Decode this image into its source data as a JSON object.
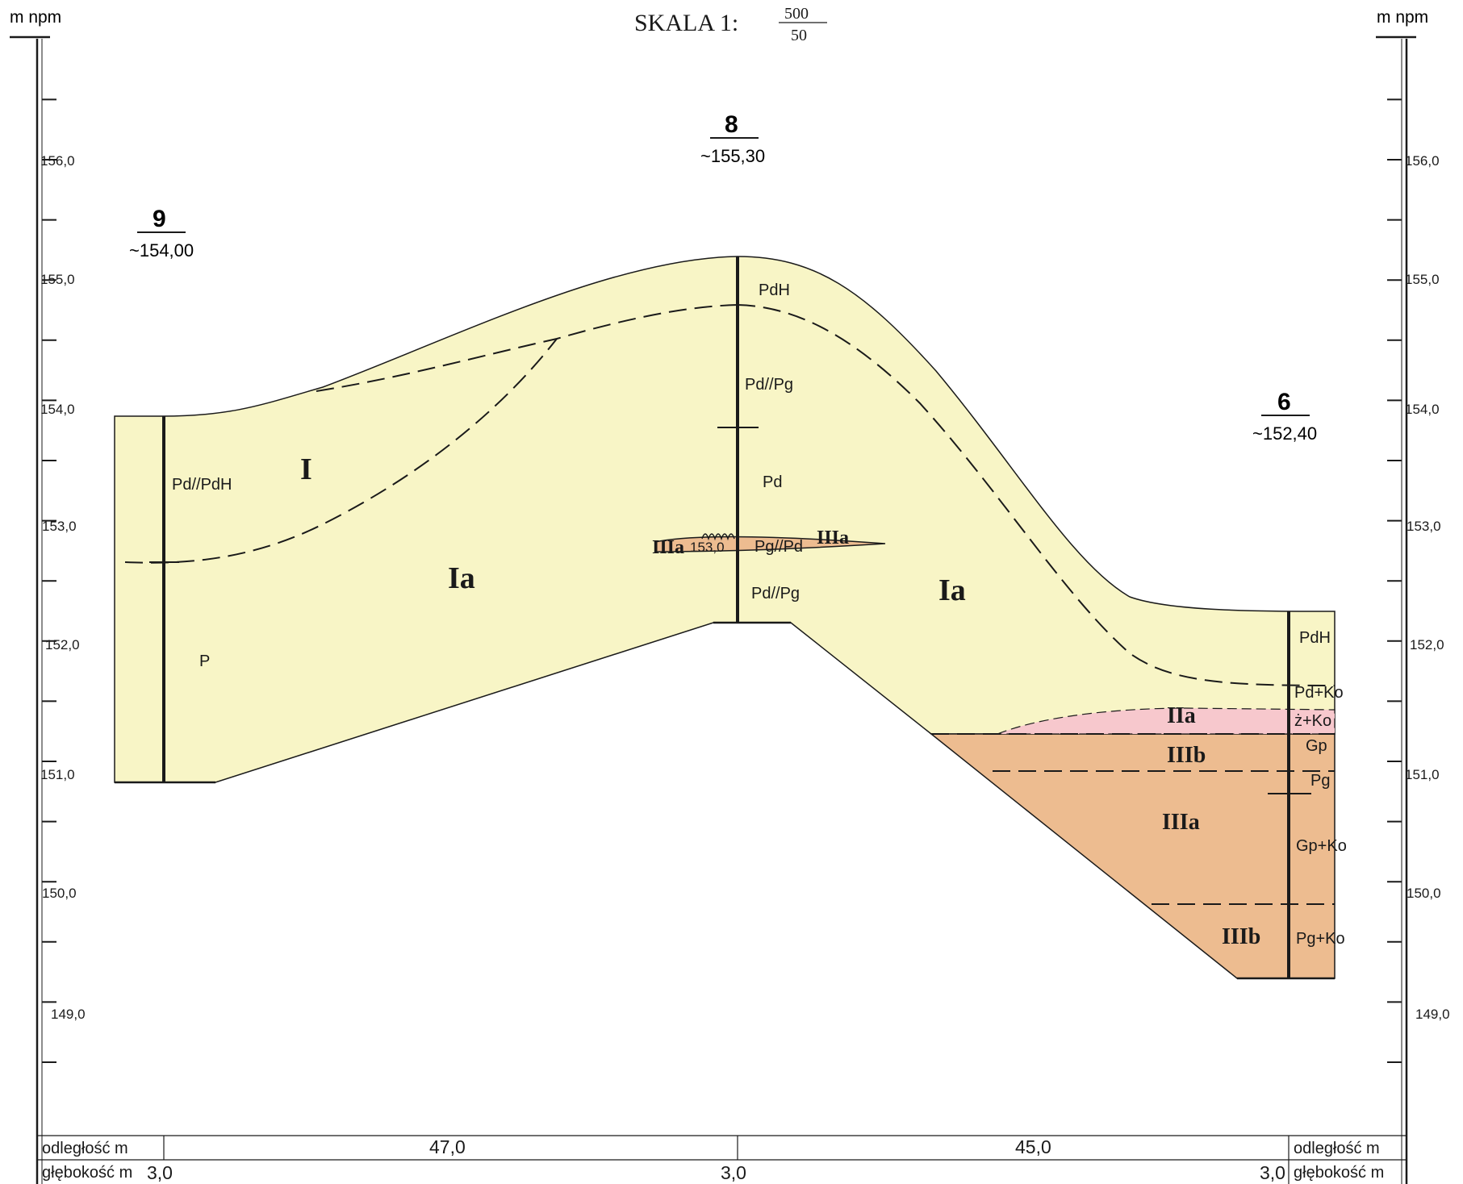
{
  "header": {
    "unit_left": "m npm",
    "unit_right": "m npm",
    "scale_label": "SKALA  1:",
    "scale_num": "500",
    "scale_den": "50"
  },
  "elevation_ticks": [
    "156,0",
    "155,0",
    "154,0",
    "153,0",
    "152,0",
    "151,0",
    "150,0",
    "149,0"
  ],
  "boreholes": [
    {
      "number": "9",
      "elevation": "~154,00"
    },
    {
      "number": "8",
      "elevation": "~155,30"
    },
    {
      "number": "6",
      "elevation": "~152,40"
    }
  ],
  "soil_labels": {
    "b9_top": "Pd//PdH",
    "b9_bottom": "P",
    "b8_1": "PdH",
    "b8_2": "Pd//Pg",
    "b8_3": "Pd",
    "b8_lens": "Pg//Pd",
    "b8_lens_depth": "153,0",
    "b8_4": "Pd//Pg",
    "b6_1": "PdH",
    "b6_2": "Pd+Ko",
    "b6_3": "ż+Ko",
    "b6_4": "Gp",
    "b6_5": "Pg",
    "b6_6": "Gp+Ko",
    "b6_7": "Pg+Ko"
  },
  "layer_labels": {
    "I": "I",
    "Ia_left": "Ia",
    "Ia_right": "Ia",
    "IIIa_lens_left": "IIIa",
    "IIIa_lens_right": "IIIa",
    "IIa": "IIa",
    "IIIb_top": "IIIb",
    "IIIa_main": "IIIa",
    "IIIb_bottom": "IIIb"
  },
  "footer": {
    "distance_label": "odległość  m",
    "depth_label": "głębokość m",
    "distance_label_right": "odległość  m",
    "depth_label_right": "głębokość m",
    "distance_1": "47,0",
    "distance_2": "45,0",
    "depth_9": "3,0",
    "depth_8": "3,0",
    "depth_6": "3,0"
  },
  "colors": {
    "sand_fill": "#f8f5c6",
    "clay_fill": "#edbc90",
    "organic_fill": "#f7c8cd",
    "line": "#1a1a1a"
  }
}
